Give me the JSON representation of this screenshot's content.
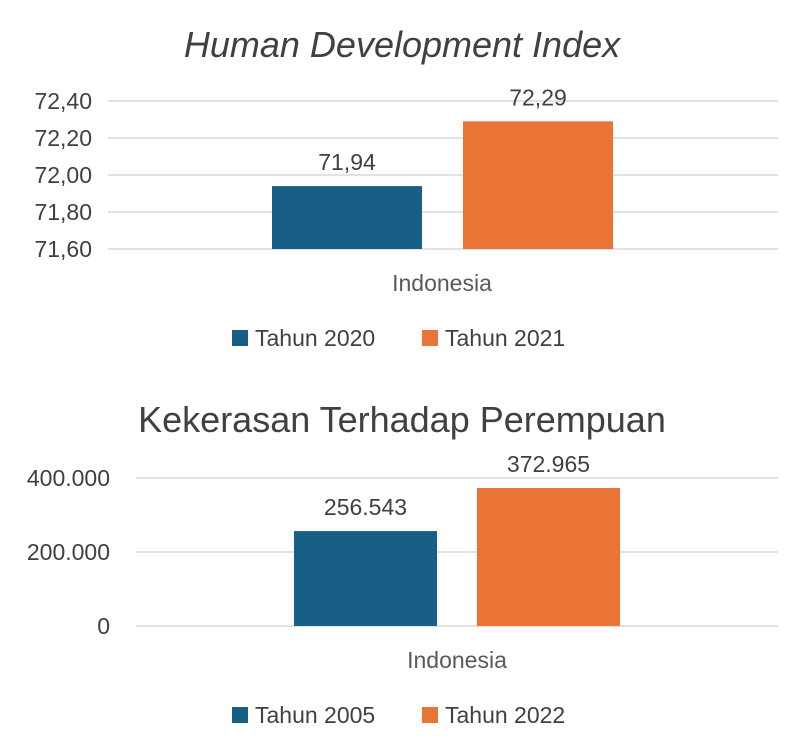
{
  "colors": {
    "series1": "#175f84",
    "series2": "#e97435"
  },
  "chart_data": [
    {
      "type": "bar",
      "title": "Human Development Index",
      "title_italic": true,
      "categories": [
        "Indonesia"
      ],
      "series": [
        {
          "name": "Tahun 2020",
          "values": [
            71.94
          ],
          "label": "71,94"
        },
        {
          "name": "Tahun 2021",
          "values": [
            72.29
          ],
          "label": "72,29"
        }
      ],
      "yticks": [
        "71,60",
        "71,80",
        "72,00",
        "72,20",
        "72,40"
      ],
      "ylim": [
        71.6,
        72.4
      ],
      "grid": true,
      "legend": "bottom"
    },
    {
      "type": "bar",
      "title": "Kekerasan Terhadap Perempuan",
      "title_italic": false,
      "categories": [
        "Indonesia"
      ],
      "series": [
        {
          "name": "Tahun 2005",
          "values": [
            256543
          ],
          "label": "256.543"
        },
        {
          "name": "Tahun 2022",
          "values": [
            372965
          ],
          "label": "372.965"
        }
      ],
      "yticks": [
        "0",
        "200.000",
        "400.000"
      ],
      "ylim": [
        0,
        400000
      ],
      "grid": true,
      "legend": "bottom"
    }
  ]
}
